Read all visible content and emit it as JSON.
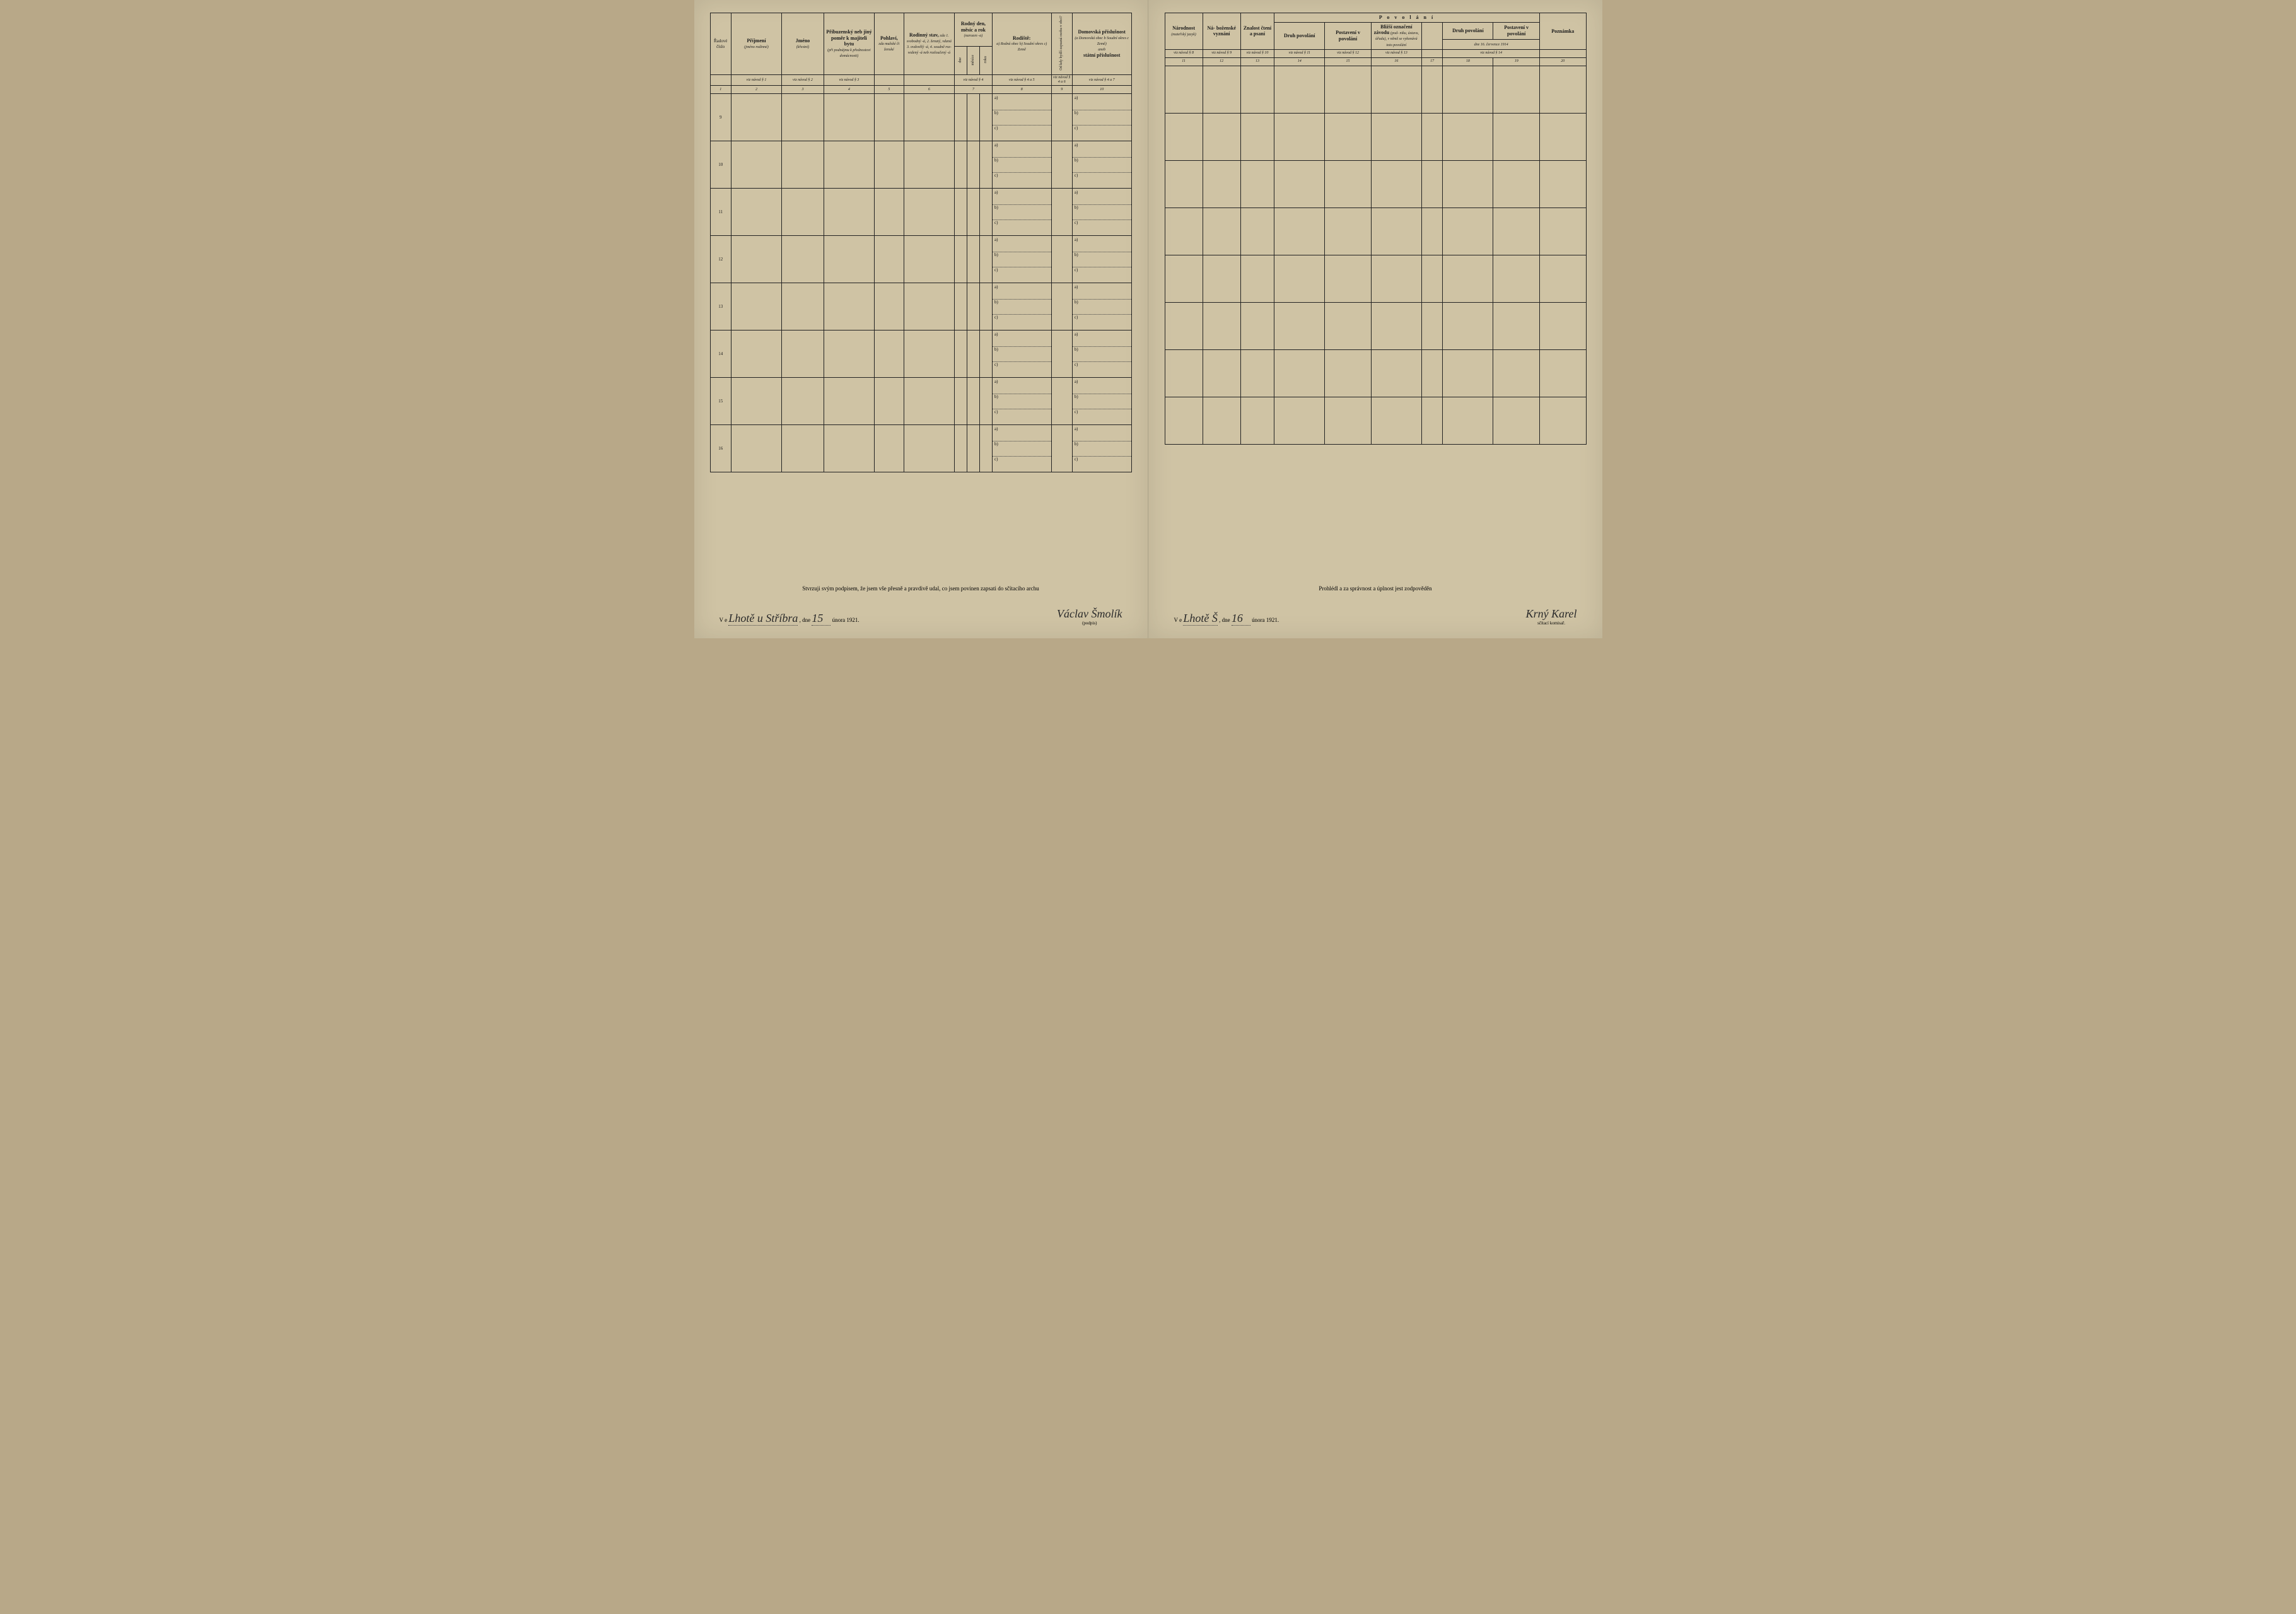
{
  "page_bg_color": "#cfc3a4",
  "border_color": "#222222",
  "text_color": "#1a1a1a",
  "handwriting_color": "#2a2a2a",
  "row_numbers": [
    "9",
    "10",
    "11",
    "12",
    "13",
    "14",
    "15",
    "16"
  ],
  "sub_labels": [
    "a)",
    "b)",
    "c)"
  ],
  "left": {
    "headers": {
      "c1": "Řadové číslo",
      "c2": "Příjmení",
      "c2s": "(jméno rodinné)",
      "c3": "Jméno",
      "c3s": "(křestní)",
      "c4": "Příbuzenský neb jiný poměr k majiteli bytu",
      "c4s": "(při podnájmu k přednostovi domácnosti)",
      "c5": "Pohlaví,",
      "c5s": "zda mužské či ženské",
      "c6": "Rodinný stav,",
      "c6s": "zda 1. svobodný -á, 2. ženatý, vdaná 3. ovdovělý -á, 4. soudně roz- vedený -á neb rozloučený -á",
      "c7": "Rodný den, měsíc a rok",
      "c7s": "(narozen -a)",
      "c7a": "dne",
      "c7b": "měsíce",
      "c7c": "roku",
      "c8": "Rodiště:",
      "c8s": "a) Rodná obec b) Soudní okres c) Země",
      "c9": "Od kdy bydlí zapsaná osoba v obci?",
      "c10": "Domovská příslušnost",
      "c10s": "(a Domovská obec b Soudní okres c Země)",
      "c10s2": "aneb",
      "c10s3": "státní příslušnost"
    },
    "navod": {
      "n2": "viz návod § 1",
      "n3": "viz návod § 2",
      "n4": "viz návod § 3",
      "n7": "viz návod § 4",
      "n8": "viz návod § 4 a 5",
      "n9": "viz návod § 4 a 6",
      "n10": "viz návod § 4 a 7"
    },
    "colnums": [
      "1",
      "2",
      "3",
      "4",
      "5",
      "6",
      "7",
      "8",
      "9",
      "10"
    ],
    "footer": {
      "line1": "Stvrzuji svým podpisem, že jsem vše přesně a pravdivě udal, co jsem povinen zapsati do sčítacího archu",
      "place_prefix": "V e",
      "place_hand": "Lhotě u Stříbra",
      "dne": ", dne",
      "day_hand": "15",
      "month_year": "února 1921.",
      "sig_hand": "Václav Šmolík",
      "sig_label": "(podpis)"
    }
  },
  "right": {
    "headers": {
      "c11": "Národnost",
      "c11s": "(mateřský jazyk)",
      "c12": "Ná- boženské vyznání",
      "c13": "Znalost čtení a psaní",
      "povolani": "P o v o l á n í",
      "c14": "Druh povolání",
      "c15": "Postavení v povolání",
      "c16": "Bližší označení závodu",
      "c16s": "(pod- niku, ústavu, úřadu), v němž se vykonává toto povolání",
      "c17": "",
      "dne1914": "dne 16. července 1914",
      "c18": "Druh povolání",
      "c19": "Postavení v povolání",
      "c20": "Poznámka"
    },
    "navod": {
      "n11": "viz návod § 8",
      "n12": "viz návod § 9",
      "n13": "viz návod § 10",
      "n14": "viz návod § 11",
      "n15": "viz návod § 12",
      "n16": "viz návod § 13",
      "n1819": "viz návod § 14"
    },
    "colnums": [
      "11",
      "12",
      "13",
      "14",
      "15",
      "16",
      "17",
      "18",
      "19",
      "20"
    ],
    "footer": {
      "line1": "Prohlédl a za správnost a úplnost jest zodpověděn",
      "place_prefix": "V e",
      "place_hand": "Lhotě Š",
      "dne": ", dne",
      "day_hand": "16",
      "month_year": "února 1921.",
      "sig_hand": "Krný Karel",
      "sig_label": "sčítací komisař."
    }
  }
}
